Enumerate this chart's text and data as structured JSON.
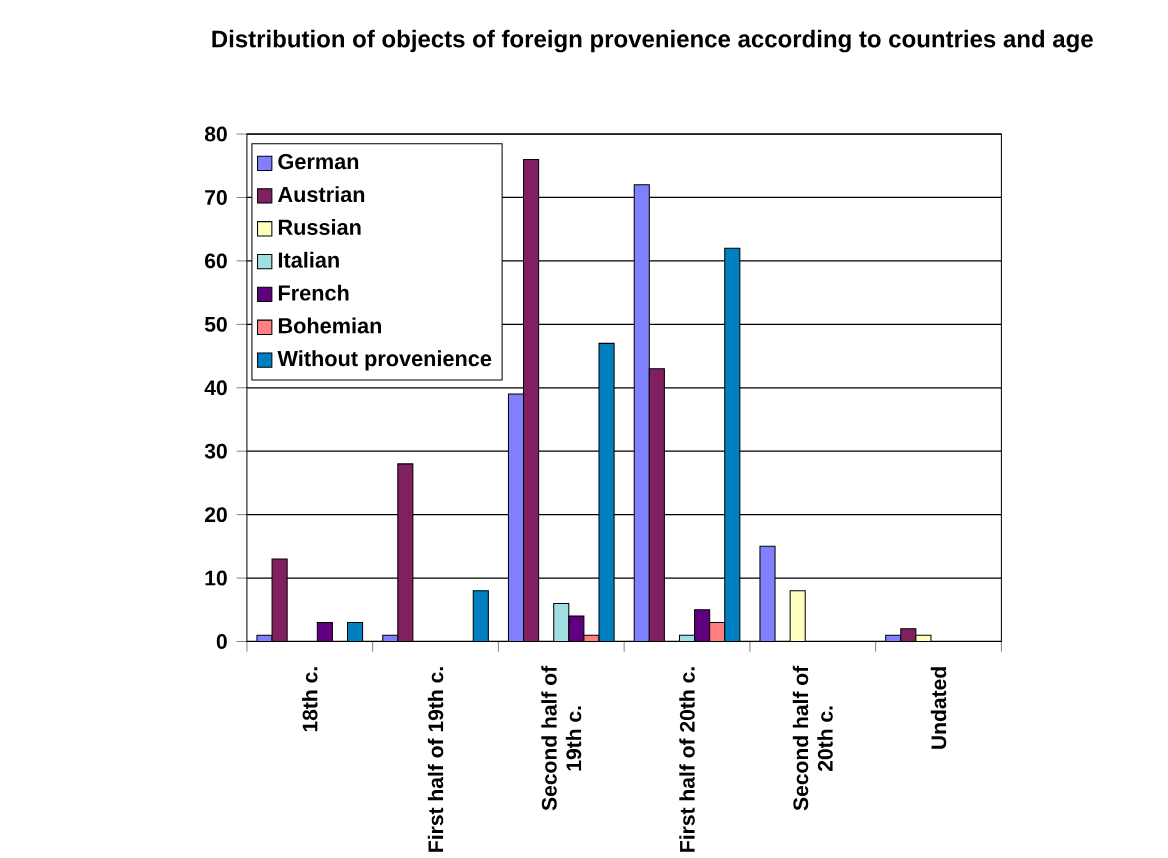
{
  "chart_data": {
    "type": "bar",
    "title": "Distribution of objects of foreign provenience according to countries and age",
    "categories": [
      "18th c.",
      "First half of 19th c.",
      "Second half of 19th c.",
      "First half of 20th c.",
      "Second half of 20th c.",
      "Undated"
    ],
    "series": [
      {
        "name": "German",
        "color": "#8080ff",
        "values": [
          1,
          1,
          39,
          72,
          15,
          1
        ]
      },
      {
        "name": "Austrian",
        "color": "#802060",
        "values": [
          13,
          28,
          76,
          43,
          null,
          2
        ]
      },
      {
        "name": "Russian",
        "color": "#ffffc0",
        "values": [
          null,
          null,
          null,
          null,
          8,
          1
        ]
      },
      {
        "name": "Italian",
        "color": "#a0e0e0",
        "values": [
          null,
          null,
          6,
          1,
          null,
          null
        ]
      },
      {
        "name": "French",
        "color": "#600080",
        "values": [
          3,
          null,
          4,
          5,
          null,
          null
        ]
      },
      {
        "name": "Bohemian",
        "color": "#ff8080",
        "values": [
          null,
          null,
          1,
          3,
          null,
          null
        ]
      },
      {
        "name": "Without provenience",
        "color": "#0080c0",
        "values": [
          3,
          8,
          47,
          62,
          null,
          null
        ]
      }
    ],
    "ylim": [
      0,
      80
    ],
    "yticks": [
      0,
      10,
      20,
      30,
      40,
      50,
      60,
      70,
      80
    ],
    "grid": "y",
    "legend": "top left"
  }
}
